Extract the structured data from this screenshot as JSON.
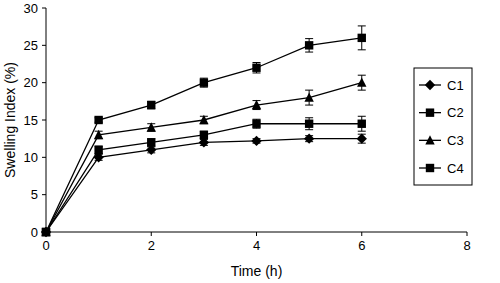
{
  "chart_data": {
    "type": "line",
    "x_label": "Time (h)",
    "y_label": "Swelling Index (%)",
    "x": [
      0,
      1,
      2,
      3,
      4,
      5,
      6
    ],
    "xlim": [
      0,
      8
    ],
    "xticks": [
      0,
      2,
      4,
      6,
      8
    ],
    "ylim": [
      0,
      30
    ],
    "yticks": [
      0,
      5,
      10,
      15,
      20,
      25,
      30
    ],
    "grid": false,
    "legend": "right",
    "line_style": "solid",
    "series": [
      {
        "name": "C1",
        "color": "#000000",
        "marker": "diamond",
        "values": [
          0,
          10,
          11,
          12,
          12.2,
          12.5,
          12.5
        ],
        "errors": [
          0,
          0.4,
          0.4,
          0.4,
          0.3,
          0.4,
          0.6
        ]
      },
      {
        "name": "C2",
        "color": "#000000",
        "marker": "square",
        "values": [
          0,
          15,
          17,
          20,
          22,
          25,
          26
        ],
        "errors": [
          0,
          0.3,
          0.5,
          0.6,
          0.7,
          0.9,
          1.6
        ]
      },
      {
        "name": "C3",
        "color": "#000000",
        "marker": "triangle",
        "values": [
          0,
          13,
          14,
          15,
          17,
          18,
          20
        ],
        "errors": [
          0,
          0.5,
          0.5,
          0.5,
          0.6,
          1,
          1
        ]
      },
      {
        "name": "C4",
        "color": "#000000",
        "marker": "square",
        "values": [
          0,
          11,
          12,
          13,
          14.5,
          14.5,
          14.5
        ],
        "errors": [
          0,
          0.5,
          0.5,
          0.5,
          0.6,
          0.8,
          1
        ]
      }
    ]
  }
}
